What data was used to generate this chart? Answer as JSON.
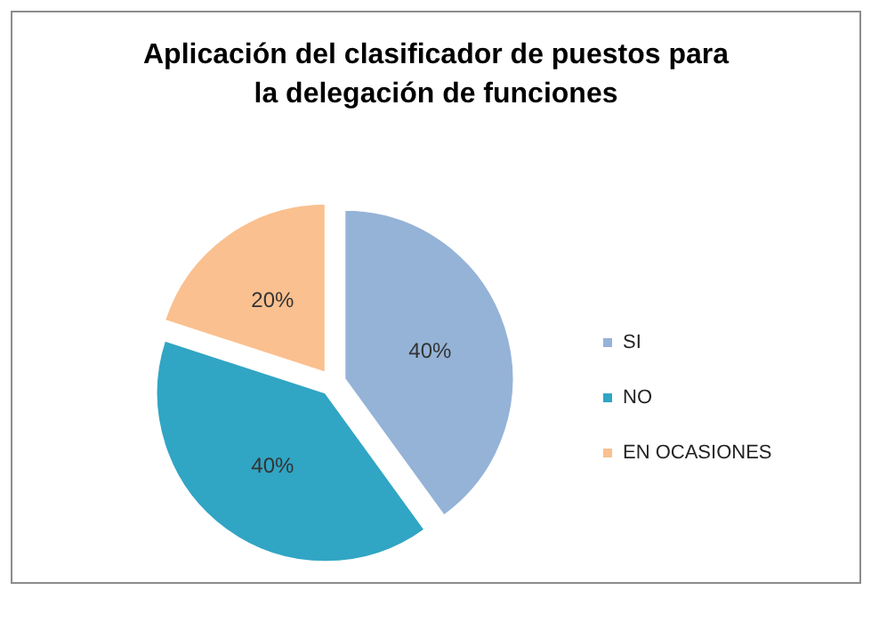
{
  "chart_data": {
    "type": "pie",
    "title": "Aplicación del clasificador de puestos para\nla delegación de funciones",
    "categories": [
      "SI",
      "NO",
      "EN OCASIONES"
    ],
    "values": [
      40,
      40,
      20
    ],
    "colors": [
      "#95b3d7",
      "#31a5c4",
      "#fac08f"
    ],
    "value_labels": [
      "40%",
      "40%",
      "20%"
    ],
    "legend": "right"
  }
}
